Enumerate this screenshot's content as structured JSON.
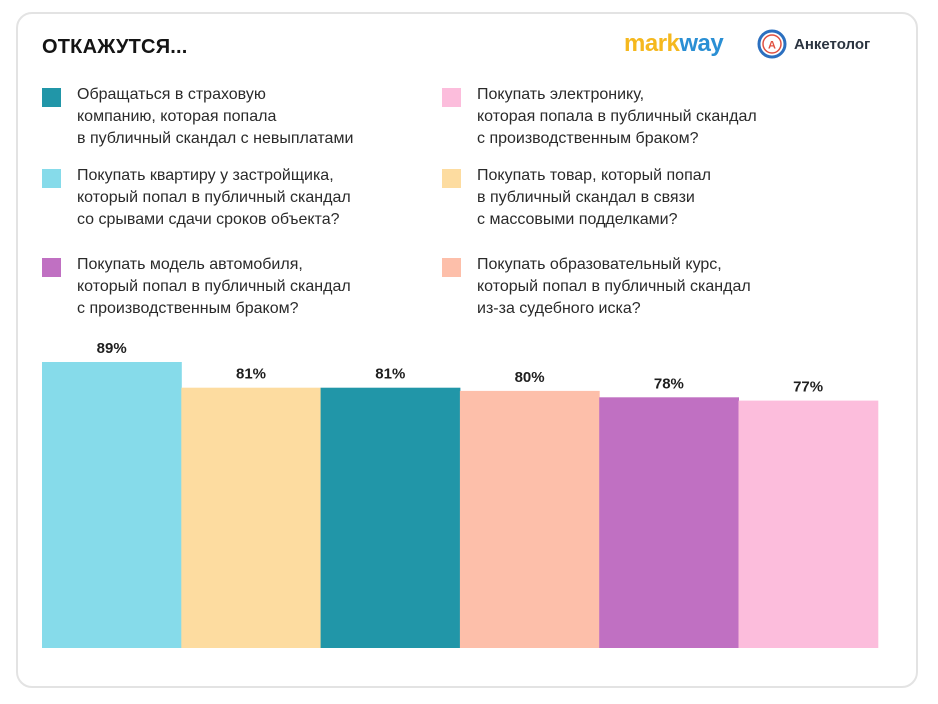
{
  "title": "ОТКАЖУТСЯ...",
  "logos": {
    "markway_part1": "mark",
    "markway_part2": "way",
    "anketolog_text": "Анкетолог",
    "anketolog_badge": "А"
  },
  "legend": [
    {
      "text": "Обращаться в страховую\nкомпанию, которая попала\nв публичный скандал с невыплатами",
      "color": "#2196a8"
    },
    {
      "text": "Покупать квартиру у застройщика,\nкоторый попал в публичный скандал\nсо срывами сдачи сроков объекта?",
      "color": "#86dbea"
    },
    {
      "text": "Покупать модель автомобиля,\nкоторый попал в публичный скандал\nс производственным браком?",
      "color": "#c070c2"
    },
    {
      "text": "Покупать электронику,\nкоторая попала в публичный скандал\nс производственным браком?",
      "color": "#fcbddc"
    },
    {
      "text": "Покупать товар, который попал\nв публичный скандал в связи\nс массовыми подделками?",
      "color": "#fddca0"
    },
    {
      "text": "Покупать образовательный курс,\nкоторый попал в публичный скандал\nиз-за судебного иска?",
      "color": "#fdbfaa"
    }
  ],
  "chart_data": {
    "type": "bar",
    "title": "ОТКАЖУТСЯ...",
    "categories": [
      "Покупать квартиру у застройщика, который попал в публичный скандал со срывами сдачи сроков объекта?",
      "Покупать товар, который попал в публичный скандал в связи с массовыми подделками?",
      "Обращаться в страховую компанию, которая попала в публичный скандал с невыплатами",
      "Покупать образовательный курс, который попал в публичный скандал из-за судебного иска?",
      "Покупать модель автомобиля, который попал в публичный скандал с производственным браком?",
      "Покупать электронику, которая попала в публичный скандал с производственным браком?"
    ],
    "values": [
      89,
      81,
      81,
      80,
      78,
      77
    ],
    "labels": [
      "89%",
      "81%",
      "81%",
      "80%",
      "78%",
      "77%"
    ],
    "colors": [
      "#86dbea",
      "#fddca0",
      "#2196a8",
      "#fdbfaa",
      "#c070c2",
      "#fcbddc"
    ],
    "ylim": [
      0,
      89
    ],
    "grid": false,
    "xlabel": "",
    "ylabel": ""
  }
}
